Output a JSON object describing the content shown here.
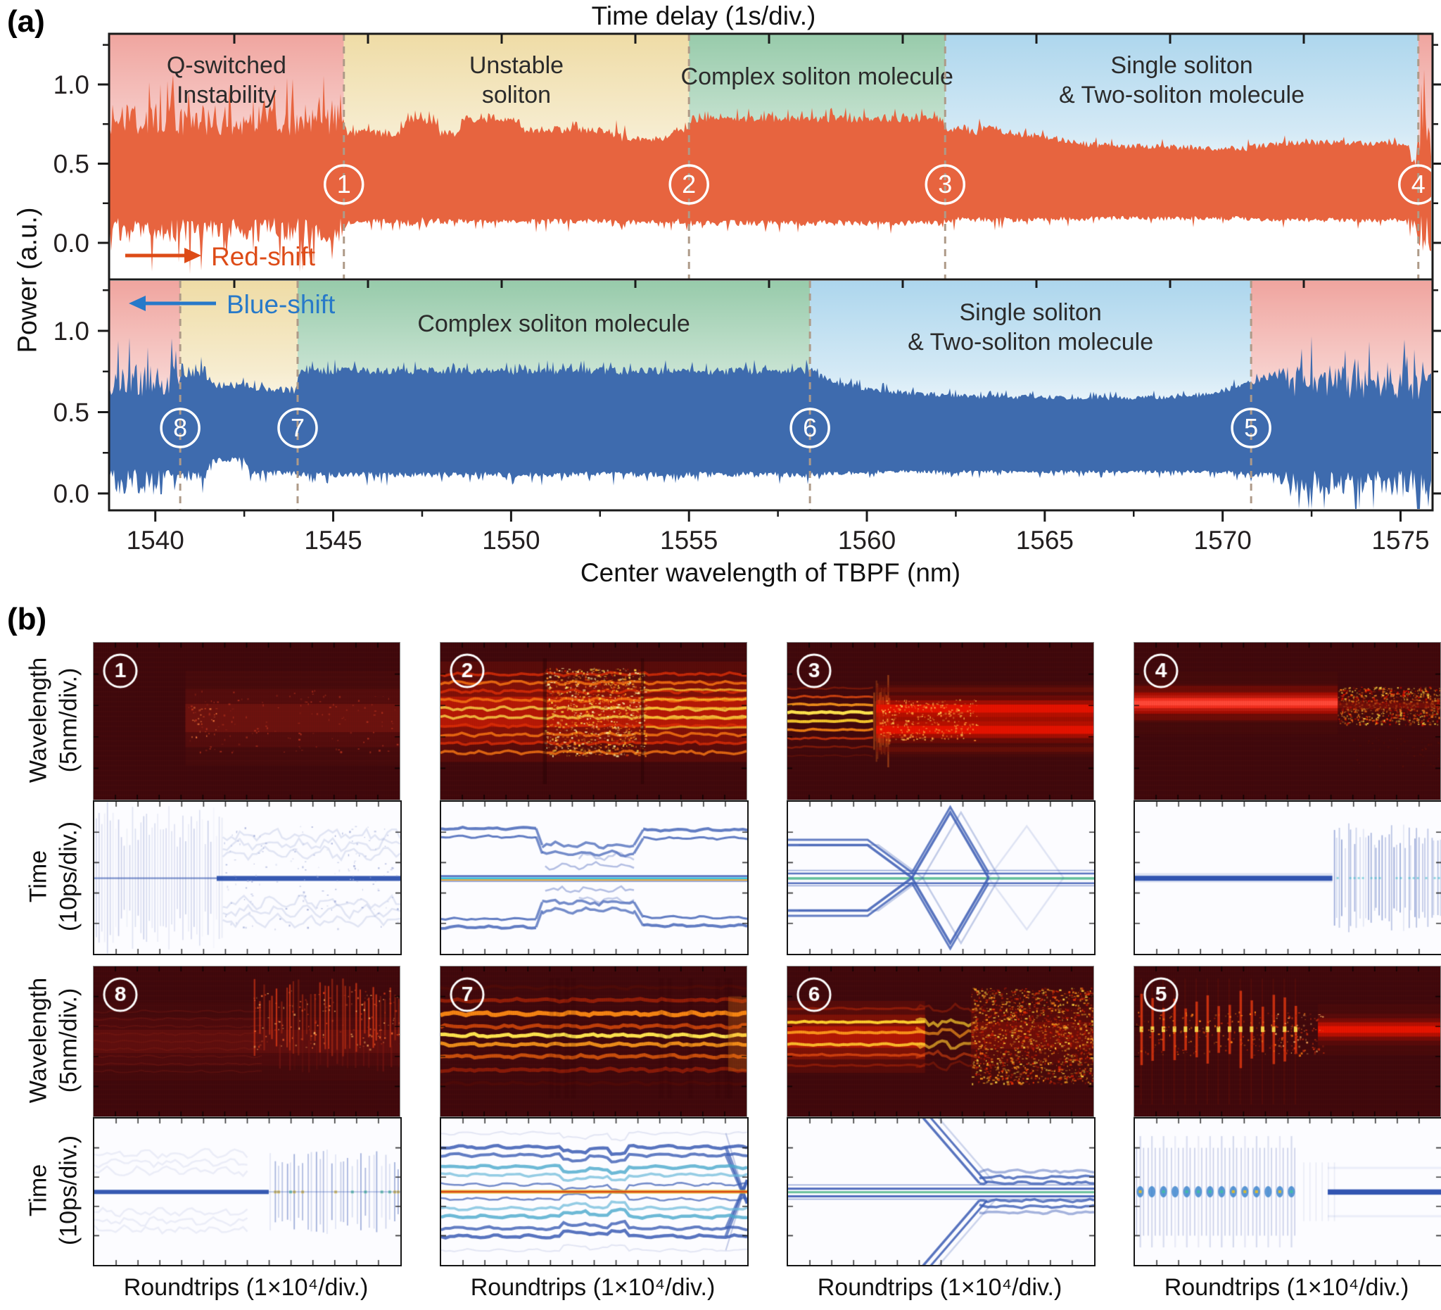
{
  "figure": {
    "panel_a_label": "(a)",
    "panel_b_label": "(b)"
  },
  "chart_data": [
    {
      "type": "area",
      "panel": "a",
      "title_top": "Time delay (1s/div.)",
      "xlabel": "Center wavelength of TBPF (nm)",
      "ylabel": "Power (a.u.)",
      "x_ticks": [
        1540,
        1545,
        1550,
        1555,
        1560,
        1565,
        1570,
        1575
      ],
      "x_minor_step": 2.5,
      "x_range": [
        1538.7,
        1575.9
      ],
      "y_ticks": [
        "1.0",
        "0.5",
        "0.0"
      ],
      "y_tick_values": [
        1.0,
        0.5,
        0.0
      ],
      "grid": false,
      "colors": {
        "red_trace": "#e7643f",
        "red_accent": "#dd4b17",
        "blue_trace": "#3e6bae",
        "blue_accent": "#2779c9",
        "dashed": "#ae9a88",
        "axis": "#1a1a1a",
        "label": "#2b2b2b",
        "band_pink": "#efa09a",
        "band_yellow": "#eedaa1",
        "band_green": "#92c8a6",
        "band_blue": "#a9d4ec"
      },
      "top_trace": {
        "name": "red-shift scan (increasing wavelength)",
        "arrow_label": "Red-shift",
        "arrow_dir": "right",
        "regions": [
          {
            "label": "Q-switched\nInstability",
            "from": 1538.7,
            "to": 1545.3,
            "band": "pink"
          },
          {
            "label": "Unstable\nsoliton",
            "from": 1545.3,
            "to": 1555.0,
            "band": "yellow"
          },
          {
            "label": "Complex soliton molecule",
            "from": 1555.0,
            "to": 1562.2,
            "band": "green"
          },
          {
            "label": "Single soliton\n& Two-soliton molecule",
            "from": 1562.2,
            "to": 1575.5,
            "band": "blue"
          },
          {
            "label": "",
            "from": 1575.5,
            "to": 1575.9,
            "band": "pink"
          }
        ],
        "markers": [
          {
            "num": "1",
            "wl": 1545.3
          },
          {
            "num": "2",
            "wl": 1555.0
          },
          {
            "num": "3",
            "wl": 1562.2
          },
          {
            "num": "4",
            "wl": 1575.5
          }
        ],
        "envelope": [
          [
            1538.7,
            0.8,
            0.06,
            0.2
          ],
          [
            1545.2,
            0.8,
            0.06,
            0.2
          ],
          [
            1545.4,
            0.7,
            0.13,
            0.05
          ],
          [
            1546.9,
            0.7,
            0.13,
            0.05
          ],
          [
            1547.1,
            0.8,
            0.12,
            0.09
          ],
          [
            1547.8,
            0.8,
            0.12,
            0.09
          ],
          [
            1548.0,
            0.7,
            0.13,
            0.05
          ],
          [
            1548.5,
            0.7,
            0.13,
            0.05
          ],
          [
            1548.7,
            0.78,
            0.13,
            0.04
          ],
          [
            1550.2,
            0.78,
            0.13,
            0.04
          ],
          [
            1550.4,
            0.72,
            0.13,
            0.05
          ],
          [
            1552.7,
            0.72,
            0.13,
            0.05
          ],
          [
            1553.1,
            0.68,
            0.1,
            0.08
          ],
          [
            1553.4,
            0.66,
            0.13,
            0.04
          ],
          [
            1554.3,
            0.66,
            0.13,
            0.04
          ],
          [
            1554.6,
            0.72,
            0.13,
            0.05
          ],
          [
            1554.9,
            0.72,
            0.13,
            0.05
          ],
          [
            1555.1,
            0.79,
            0.12,
            0.05
          ],
          [
            1562.1,
            0.79,
            0.12,
            0.05
          ],
          [
            1562.3,
            0.72,
            0.14,
            0.05
          ],
          [
            1563.1,
            0.71,
            0.14,
            0.05
          ],
          [
            1563.4,
            0.76,
            0.14,
            0.05
          ],
          [
            1563.9,
            0.71,
            0.14,
            0.05
          ],
          [
            1566.5,
            0.62,
            0.15,
            0.04
          ],
          [
            1570.5,
            0.6,
            0.15,
            0.04
          ],
          [
            1572.0,
            0.64,
            0.14,
            0.04
          ],
          [
            1575.2,
            0.63,
            0.14,
            0.04
          ],
          [
            1575.4,
            0.45,
            0.1,
            0.18
          ],
          [
            1575.6,
            0.75,
            0.03,
            0.3
          ],
          [
            1575.9,
            0.7,
            0.03,
            0.3
          ]
        ]
      },
      "bottom_trace": {
        "name": "blue-shift scan (decreasing wavelength)",
        "arrow_label": "Blue-shift",
        "arrow_dir": "left",
        "regions": [
          {
            "label": "",
            "from": 1538.7,
            "to": 1540.7,
            "band": "pink"
          },
          {
            "label": "",
            "from": 1540.7,
            "to": 1544.0,
            "band": "yellow"
          },
          {
            "label": "Complex soliton molecule",
            "from": 1544.0,
            "to": 1558.4,
            "band": "green"
          },
          {
            "label": "Single soliton\n& Two-soliton molecule",
            "from": 1558.4,
            "to": 1570.8,
            "band": "blue"
          },
          {
            "label": "",
            "from": 1570.8,
            "to": 1575.9,
            "band": "pink"
          }
        ],
        "markers": [
          {
            "num": "8",
            "wl": 1540.7
          },
          {
            "num": "7",
            "wl": 1544.0
          },
          {
            "num": "6",
            "wl": 1558.4
          },
          {
            "num": "5",
            "wl": 1570.8
          }
        ],
        "envelope": [
          [
            1538.7,
            0.72,
            0.05,
            0.2
          ],
          [
            1540.6,
            0.72,
            0.05,
            0.2
          ],
          [
            1540.8,
            0.77,
            0.1,
            0.09
          ],
          [
            1541.4,
            0.77,
            0.1,
            0.09
          ],
          [
            1541.6,
            0.67,
            0.2,
            0.05
          ],
          [
            1542.5,
            0.67,
            0.2,
            0.05
          ],
          [
            1542.7,
            0.66,
            0.12,
            0.05
          ],
          [
            1543.9,
            0.64,
            0.12,
            0.05
          ],
          [
            1544.1,
            0.76,
            0.11,
            0.05
          ],
          [
            1558.3,
            0.76,
            0.11,
            0.05
          ],
          [
            1559.2,
            0.68,
            0.12,
            0.04
          ],
          [
            1560.6,
            0.63,
            0.13,
            0.035
          ],
          [
            1563.0,
            0.6,
            0.13,
            0.03
          ],
          [
            1567.0,
            0.59,
            0.13,
            0.03
          ],
          [
            1569.3,
            0.6,
            0.13,
            0.03
          ],
          [
            1570.6,
            0.67,
            0.12,
            0.04
          ],
          [
            1571.5,
            0.75,
            0.1,
            0.06
          ],
          [
            1571.9,
            0.72,
            0.04,
            0.2
          ],
          [
            1575.9,
            0.7,
            0.04,
            0.22
          ]
        ]
      }
    },
    {
      "type": "heatmap",
      "panel": "b",
      "xlabel": "Roundtrips (1×10⁴/div.)",
      "wavelength_label": "Wavelength\n(5nm/div.)",
      "time_label": "Time\n(10ps/div.)",
      "colormaps": {
        "wavelength": "dark-red/hot",
        "time": "blue-on-white"
      },
      "columns": [
        {
          "top": {
            "num": "1",
            "wl_pattern": "r1",
            "time_pattern": "b1",
            "note": "dim spectrum, noise onset mid-scan; single pulse line splits into wandering filaments"
          },
          "bottom": {
            "num": "8",
            "wl_pattern": "r8",
            "time_pattern": "b8",
            "note": "faint spectrum then Q-switched burst comb; steady pulse breaks into pulsation comb"
          }
        },
        {
          "top": {
            "num": "2",
            "wl_pattern": "r2",
            "time_pattern": "b2",
            "note": "striped bright spectrum with chaotic mid-section; multi-pulse molecule rearranging"
          },
          "bottom": {
            "num": "7",
            "wl_pattern": "r7",
            "time_pattern": "b7",
            "note": "stable striped spectrum; many-soliton molecule with step drifts"
          }
        },
        {
          "top": {
            "num": "3",
            "wl_pattern": "r3",
            "time_pattern": "b3",
            "note": "line spectrum becomes two broad bands; outer pulses cross in X pattern then merge"
          },
          "bottom": {
            "num": "6",
            "wl_pattern": "r6",
            "time_pattern": "b6",
            "note": "smooth bands turn chaotic; diagonal pulses join central molecule"
          }
        },
        {
          "top": {
            "num": "4",
            "wl_pattern": "r4",
            "time_pattern": "b4",
            "note": "single soliton band then Q-switched speckle; single pulse then pulsation comb"
          },
          "bottom": {
            "num": "5",
            "wl_pattern": "r5",
            "time_pattern": "b5",
            "note": "burst comb condenses into single soliton band; bursts become steady pulse"
          }
        }
      ]
    }
  ]
}
